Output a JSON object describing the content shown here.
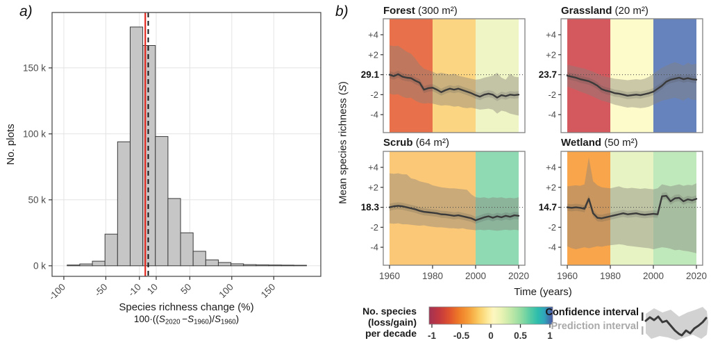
{
  "panel_a_label": "a)",
  "panel_b_label": "b)",
  "chart_data": [
    {
      "id": "richness-change-histogram",
      "type": "bar",
      "ylabel": "No. plots",
      "xlabel": "Species richness change (%)",
      "formula_text": "100·((S2020 −S1960)/S1960)",
      "formula_parts": [
        {
          "t": "plain",
          "v": "100·(("
        },
        {
          "t": "ivar",
          "v": "S"
        },
        {
          "t": "sub",
          "v": "2020"
        },
        {
          "t": "plain",
          "v": " −"
        },
        {
          "t": "ivar",
          "v": "S"
        },
        {
          "t": "sub",
          "v": "1960"
        },
        {
          "t": "plain",
          "v": ")/"
        },
        {
          "t": "ivar",
          "v": "S"
        },
        {
          "t": "sub",
          "v": "1960"
        },
        {
          "t": "plain",
          "v": ")"
        }
      ],
      "xlim": [
        -114,
        206
      ],
      "ylim": [
        -8000,
        192000
      ],
      "x_ticks": [
        {
          "v": -100,
          "label": "-100"
        },
        {
          "v": -50,
          "label": "-50"
        },
        {
          "v": -10,
          "label": "-10"
        },
        {
          "v": 10,
          "label": "10"
        },
        {
          "v": 50,
          "label": "50"
        },
        {
          "v": 100,
          "label": "100"
        },
        {
          "v": 150,
          "label": "150"
        }
      ],
      "y_ticks": [
        {
          "v": 0,
          "label": "0 k"
        },
        {
          "v": 50000,
          "label": "50 k"
        },
        {
          "v": 100000,
          "label": "100 k"
        },
        {
          "v": 150000,
          "label": "150 k"
        }
      ],
      "bins": {
        "start": -96,
        "width": 15,
        "counts": [
          600,
          1400,
          3500,
          24000,
          94000,
          181000,
          167000,
          98000,
          51000,
          25000,
          11000,
          4500,
          2500,
          1500,
          900,
          700,
          600,
          500,
          400
        ]
      },
      "vlines": [
        {
          "name": "mean-line",
          "x": -3,
          "style": "solid",
          "color": "#e0251b"
        },
        {
          "name": "median-line",
          "x": 0.5,
          "style": "dashed",
          "color": "#141414"
        }
      ],
      "bar_fill": "#c6c6c6",
      "bar_stroke": "#3b3b3b",
      "grid_color": "#e4e4e4",
      "border_color": "#4d4d4d",
      "tick_text_color": "#4a4a4a"
    },
    {
      "id": "richness-trends",
      "type": "line",
      "ylabel_parts": {
        "pre": "Mean species richness (",
        "var": "S",
        "post": ")"
      },
      "xlabel": "Time (years)",
      "x_start": 1960,
      "x_step": 2,
      "x_ticks": [
        1960,
        1980,
        2000,
        2020
      ],
      "ylim": [
        -5.8,
        5.6
      ],
      "rel_y_ticks": [
        {
          "v": 4,
          "label": "+4"
        },
        {
          "v": 2,
          "label": "+2"
        },
        {
          "v": -2,
          "label": "-2"
        },
        {
          "v": -4,
          "label": "-4"
        }
      ],
      "line_color": "#3a3a3a",
      "pi_fill": "rgba(134,128,122,0.42)",
      "ci_fill": "rgba(70,70,70,0.18)",
      "border_color": "#808080",
      "baseline_dot_color": "#4d4d4d",
      "panels": [
        {
          "habitat": "Forest",
          "area_label": "(300 m²)",
          "baseline_label": "29.1",
          "bands": [
            {
              "from": 1960,
              "to": 1980,
              "color": "#E8714B"
            },
            {
              "from": 1980,
              "to": 2000,
              "color": "#FBD581"
            },
            {
              "from": 2000,
              "to": 2020,
              "color": "#EFF5C4"
            }
          ],
          "line": [
            0,
            -0.15,
            0.05,
            -0.2,
            -0.3,
            -0.35,
            -0.6,
            -0.8,
            -1.5,
            -1.35,
            -1.3,
            -1.5,
            -1.75,
            -1.55,
            -1.4,
            -1.5,
            -1.4,
            -1.55,
            -1.7,
            -1.85,
            -2.05,
            -2.2,
            -2.0,
            -1.9,
            -2.0,
            -2.3,
            -2.05,
            -2.15,
            -2.0,
            -2.05,
            -2.0
          ],
          "upper": [
            2.95,
            2.85,
            2.9,
            2.6,
            2.3,
            2.1,
            1.6,
            1.0,
            0.6,
            0.45,
            0.3,
            0.1,
            0.2,
            0.1,
            0.0,
            0.1,
            -0.1,
            -0.2,
            -0.3,
            -0.4,
            -0.5,
            -0.45,
            -0.3,
            -0.2,
            -0.1,
            0.2,
            -0.3,
            -0.5,
            0.1,
            -0.2,
            -0.25
          ],
          "lower": [
            -1.9,
            -2.0,
            -1.95,
            -2.2,
            -2.35,
            -2.3,
            -2.6,
            -2.8,
            -2.9,
            -2.85,
            -2.9,
            -3.0,
            -3.1,
            -3.05,
            -3.1,
            -3.2,
            -3.15,
            -3.3,
            -3.35,
            -3.3,
            -3.4,
            -3.5,
            -3.45,
            -3.4,
            -3.5,
            -3.9,
            -3.6,
            -3.7,
            -3.9,
            -4.0,
            -4.1
          ]
        },
        {
          "habitat": "Grassland",
          "area_label": "(20 m²)",
          "baseline_label": "23.7",
          "bands": [
            {
              "from": 1960,
              "to": 1980,
              "color": "#D4595F"
            },
            {
              "from": 1980,
              "to": 2000,
              "color": "#FDFBC9"
            },
            {
              "from": 2000,
              "to": 2020,
              "color": "#6783BE"
            }
          ],
          "line": [
            -0.1,
            -0.2,
            -0.3,
            -0.45,
            -0.55,
            -0.65,
            -0.85,
            -1.1,
            -1.45,
            -1.6,
            -1.7,
            -1.85,
            -1.9,
            -2.0,
            -2.1,
            -2.05,
            -2.0,
            -2.05,
            -1.95,
            -1.85,
            -1.7,
            -1.4,
            -1.1,
            -0.7,
            -0.5,
            -0.4,
            -0.3,
            -0.45,
            -0.35,
            -0.45,
            -0.5
          ],
          "upper": [
            1.0,
            0.9,
            0.8,
            0.7,
            0.6,
            0.45,
            0.3,
            0.1,
            -0.1,
            -0.2,
            -0.3,
            -0.4,
            -0.45,
            -0.5,
            -0.55,
            -0.5,
            -0.45,
            -0.5,
            -0.4,
            -0.2,
            0.1,
            0.4,
            0.7,
            0.9,
            1.1,
            1.25,
            1.1,
            0.9,
            1.2,
            1.0,
            1.1
          ],
          "lower": [
            -1.2,
            -1.35,
            -1.5,
            -1.7,
            -1.85,
            -2.0,
            -2.2,
            -2.4,
            -2.6,
            -2.7,
            -2.85,
            -3.0,
            -3.1,
            -3.2,
            -3.3,
            -3.25,
            -3.3,
            -3.35,
            -3.3,
            -3.2,
            -3.0,
            -2.8,
            -2.6,
            -2.5,
            -2.4,
            -2.3,
            -2.45,
            -2.6,
            -2.3,
            -2.5,
            -2.55
          ]
        },
        {
          "habitat": "Scrub",
          "area_label": "(64 m²)",
          "baseline_label": "18.3",
          "bands": [
            {
              "from": 1960,
              "to": 2000,
              "color": "#FBC877"
            },
            {
              "from": 2000,
              "to": 2020,
              "color": "#8FDAB3"
            }
          ],
          "line": [
            0,
            0.1,
            0.15,
            0.1,
            0,
            -0.1,
            -0.2,
            -0.35,
            -0.45,
            -0.5,
            -0.55,
            -0.6,
            -0.7,
            -0.72,
            -0.78,
            -0.85,
            -0.8,
            -0.9,
            -1.0,
            -1.1,
            -1.3,
            -1.15,
            -1.0,
            -0.9,
            -1.05,
            -0.9,
            -1.0,
            -0.85,
            -0.95,
            -0.8,
            -0.85
          ],
          "upper": [
            3.4,
            3.35,
            3.4,
            3.3,
            3.3,
            2.9,
            2.8,
            2.6,
            2.5,
            2.4,
            2.2,
            2.1,
            2.0,
            1.95,
            1.9,
            1.9,
            1.85,
            1.8,
            1.75,
            1.3,
            1.0,
            0.95,
            1.0,
            0.9,
            1.0,
            0.95,
            1.0,
            0.9,
            0.95,
            0.9,
            1.0
          ],
          "lower": [
            -1.6,
            -1.65,
            -1.6,
            -1.7,
            -1.7,
            -1.75,
            -1.8,
            -1.85,
            -1.8,
            -1.9,
            -1.95,
            -2.0,
            -2.0,
            -2.05,
            -2.1,
            -2.1,
            -2.15,
            -2.1,
            -2.2,
            -2.25,
            -2.3,
            -2.25,
            -2.3,
            -2.25,
            -2.3,
            -2.35,
            -2.3,
            -2.25,
            -2.3,
            -2.25,
            -2.3
          ]
        },
        {
          "habitat": "Wetland",
          "area_label": "(50 m²)",
          "baseline_label": "14.7",
          "bands": [
            {
              "from": 1960,
              "to": 1980,
              "color": "#F9A54B"
            },
            {
              "from": 1980,
              "to": 2000,
              "color": "#E7F3C3"
            },
            {
              "from": 2000,
              "to": 2020,
              "color": "#BFE8BB"
            }
          ],
          "line": [
            0,
            -0.05,
            0,
            -0.05,
            -0.15,
            0.85,
            -0.6,
            -1.05,
            -1.1,
            -1.0,
            -0.9,
            -0.8,
            -0.7,
            -0.6,
            -0.7,
            -0.65,
            -0.6,
            -0.7,
            -0.75,
            -0.7,
            -0.65,
            -0.7,
            1.1,
            1.15,
            0.6,
            0.9,
            0.95,
            0.6,
            0.8,
            0.7,
            0.85
          ],
          "upper": [
            2.1,
            2.15,
            2.2,
            2.15,
            2.3,
            5.0,
            2.6,
            2.2,
            2.0,
            1.95,
            1.9,
            2.0,
            2.1,
            1.95,
            1.9,
            1.95,
            1.9,
            1.85,
            1.9,
            1.85,
            1.8,
            1.9,
            2.3,
            2.2,
            2.1,
            2.2,
            2.3,
            2.15,
            2.25,
            2.2,
            2.4
          ],
          "lower": [
            -3.9,
            -4.1,
            -4.2,
            -4.1,
            -4.0,
            -4.1,
            -4.0,
            -3.9,
            -3.95,
            -3.85,
            -3.8,
            -3.75,
            -3.7,
            -3.75,
            -3.85,
            -3.9,
            -3.95,
            -4.0,
            -4.05,
            -4.1,
            -4.2,
            -4.1,
            -4.0,
            -4.05,
            -4.15,
            -4.3,
            -4.25,
            -4.35,
            -4.4,
            -4.5,
            -4.6
          ]
        }
      ]
    }
  ],
  "legend": {
    "colorbar_label_lines": [
      "No. species",
      "(loss/gain)",
      "per decade"
    ],
    "colorbar_ticks": [
      {
        "v": -1,
        "label": "-1"
      },
      {
        "v": -0.5,
        "label": "-0.5"
      },
      {
        "v": 0,
        "label": "0"
      },
      {
        "v": 0.5,
        "label": "0.5"
      },
      {
        "v": 1,
        "label": "1"
      }
    ],
    "colorbar_gradient": [
      {
        "o": 0,
        "c": "#A23252"
      },
      {
        "o": 0.08,
        "c": "#C23840"
      },
      {
        "o": 0.16,
        "c": "#DE512F"
      },
      {
        "o": 0.24,
        "c": "#EE7A28"
      },
      {
        "o": 0.32,
        "c": "#F59E38"
      },
      {
        "o": 0.4,
        "c": "#FACB62"
      },
      {
        "o": 0.48,
        "c": "#FDEC9F"
      },
      {
        "o": 0.52,
        "c": "#FDF6C0"
      },
      {
        "o": 0.58,
        "c": "#EBF3B4"
      },
      {
        "o": 0.66,
        "c": "#C3E9A8"
      },
      {
        "o": 0.74,
        "c": "#94DCA2"
      },
      {
        "o": 0.82,
        "c": "#55CBA4"
      },
      {
        "o": 0.88,
        "c": "#2DBDAD"
      },
      {
        "o": 0.93,
        "c": "#2FA6BB"
      },
      {
        "o": 1,
        "c": "#4B57A6"
      }
    ],
    "confidence_label": "Confidence interval",
    "prediction_label": "Prediction interval"
  }
}
